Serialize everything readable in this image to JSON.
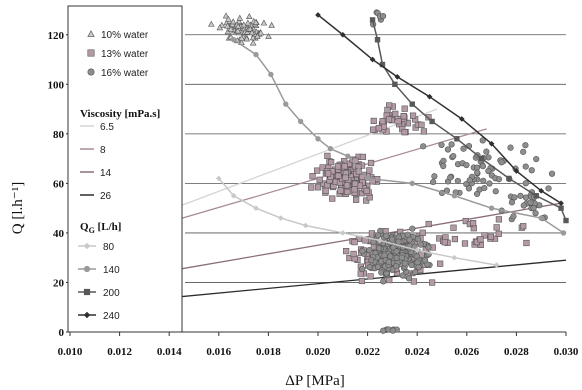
{
  "chart_data": {
    "type": "scatter",
    "title": "",
    "xlabel": "ΔP [MPa]",
    "ylabel": "Q [l.h⁻¹]",
    "xlim": [
      0.01,
      0.03
    ],
    "ylim": [
      0,
      130
    ],
    "x_ticks": [
      "0.010",
      "0.012",
      "0.014",
      "0.016",
      "0.018",
      "0.020",
      "0.022",
      "0.024",
      "0.026",
      "0.028",
      "0.030"
    ],
    "y_ticks": [
      "0",
      "20",
      "40",
      "60",
      "80",
      "100",
      "120"
    ],
    "grid": "horizontal",
    "legend_position": "left",
    "legend": {
      "water_entries": [
        {
          "label": "10%   water",
          "marker": "triangle",
          "color": "#c8c8c8"
        },
        {
          "label": "13%   water",
          "marker": "square",
          "color": "#b49aa6"
        },
        {
          "label": "16%   water",
          "marker": "circle",
          "color": "#8e8e8e"
        }
      ],
      "viscosity_title": "Viscosity [mPa.s]",
      "viscosity_entries": [
        {
          "label": "6.5",
          "color": "#d4d4d4"
        },
        {
          "label": "8",
          "color": "#a88a98"
        },
        {
          "label": "14",
          "color": "#8a6e7a"
        },
        {
          "label": "26",
          "color": "#2c2c2c"
        }
      ],
      "qg_title_main": "Q",
      "qg_title_sub": "G",
      "qg_title_unit": " [L/h]",
      "qg_entries": [
        {
          "label": "80",
          "marker": "diamond",
          "color": "#c8c8c8"
        },
        {
          "label": "140",
          "marker": "circle",
          "color": "#9a9a9a"
        },
        {
          "label": "200",
          "marker": "square",
          "color": "#585858"
        },
        {
          "label": "240",
          "marker": "diamond",
          "color": "#303030"
        }
      ]
    },
    "viscosity_lines": [
      {
        "name": "6.5",
        "color": "#d4d4d4",
        "points": [
          [
            0.0142,
            50
          ],
          [
            0.0248,
            90
          ]
        ]
      },
      {
        "name": "8",
        "color": "#a88a98",
        "points": [
          [
            0.0142,
            45
          ],
          [
            0.0268,
            82
          ]
        ]
      },
      {
        "name": "14",
        "color": "#8a6e7a",
        "points": [
          [
            0.0142,
            25
          ],
          [
            0.0298,
            52
          ]
        ]
      },
      {
        "name": "26",
        "color": "#2c2c2c",
        "points": [
          [
            0.0142,
            14
          ],
          [
            0.03,
            29
          ]
        ]
      }
    ],
    "qg_curves": [
      {
        "name": "80",
        "color": "#c8c8c8",
        "marker": "diamond",
        "points": [
          [
            0.016,
            62
          ],
          [
            0.0166,
            55
          ],
          [
            0.0175,
            50
          ],
          [
            0.0185,
            46
          ],
          [
            0.0195,
            43
          ],
          [
            0.021,
            40
          ],
          [
            0.0225,
            37
          ],
          [
            0.024,
            33
          ],
          [
            0.0255,
            30
          ],
          [
            0.0272,
            27
          ]
        ]
      },
      {
        "name": "140",
        "color": "#9a9a9a",
        "marker": "circle",
        "points": [
          [
            0.0166,
            118
          ],
          [
            0.0175,
            112
          ],
          [
            0.0181,
            104
          ],
          [
            0.0187,
            92
          ],
          [
            0.0193,
            85
          ],
          [
            0.02,
            78
          ],
          [
            0.0205,
            74
          ],
          [
            0.0212,
            71
          ],
          [
            0.022,
            62
          ],
          [
            0.0238,
            60
          ],
          [
            0.0255,
            55
          ],
          [
            0.027,
            50
          ],
          [
            0.029,
            46
          ],
          [
            0.0299,
            40
          ]
        ]
      },
      {
        "name": "200",
        "color": "#585858",
        "marker": "square",
        "points": [
          [
            0.0222,
            126
          ],
          [
            0.0224,
            118
          ],
          [
            0.0226,
            108
          ],
          [
            0.0231,
            100
          ],
          [
            0.0238,
            92
          ],
          [
            0.0246,
            85
          ],
          [
            0.0256,
            78
          ],
          [
            0.0266,
            70
          ],
          [
            0.0277,
            62
          ],
          [
            0.0288,
            55
          ],
          [
            0.0298,
            50
          ],
          [
            0.03,
            45
          ]
        ]
      },
      {
        "name": "240",
        "color": "#303030",
        "marker": "diamond",
        "points": [
          [
            0.02,
            128
          ],
          [
            0.021,
            120
          ],
          [
            0.0222,
            110
          ],
          [
            0.0232,
            103
          ],
          [
            0.0245,
            95
          ],
          [
            0.0258,
            86
          ],
          [
            0.027,
            76
          ],
          [
            0.028,
            65
          ],
          [
            0.029,
            57
          ],
          [
            0.0298,
            52
          ]
        ]
      }
    ],
    "scatter_clusters": [
      {
        "name": "10% water",
        "marker": "triangle",
        "color": "#c8c8c8",
        "clusters": [
          {
            "x": 0.017,
            "y": 122,
            "sx": 0.0007,
            "sy": 3.5,
            "n": 70
          }
        ]
      },
      {
        "name": "13% water",
        "marker": "square",
        "color": "#b49aa6",
        "clusters": [
          {
            "x": 0.0212,
            "y": 62,
            "sx": 0.0008,
            "sy": 5,
            "n": 150
          },
          {
            "x": 0.0232,
            "y": 85,
            "sx": 0.0009,
            "sy": 4,
            "n": 40
          },
          {
            "x": 0.0228,
            "y": 30,
            "sx": 0.0012,
            "sy": 7,
            "n": 120
          },
          {
            "x": 0.0262,
            "y": 40,
            "sx": 0.002,
            "sy": 4,
            "n": 30
          }
        ]
      },
      {
        "name": "16% water",
        "marker": "circle",
        "color": "#8e8e8e",
        "clusters": [
          {
            "x": 0.0232,
            "y": 32,
            "sx": 0.0008,
            "sy": 7,
            "n": 180
          },
          {
            "x": 0.0265,
            "y": 65,
            "sx": 0.0016,
            "sy": 9,
            "n": 70
          },
          {
            "x": 0.0285,
            "y": 52,
            "sx": 0.0008,
            "sy": 5,
            "n": 25
          },
          {
            "x": 0.023,
            "y": 1,
            "sx": 0.0003,
            "sy": 0.4,
            "n": 8
          },
          {
            "x": 0.0226,
            "y": 127,
            "sx": 0.0003,
            "sy": 2,
            "n": 6
          }
        ]
      }
    ]
  }
}
